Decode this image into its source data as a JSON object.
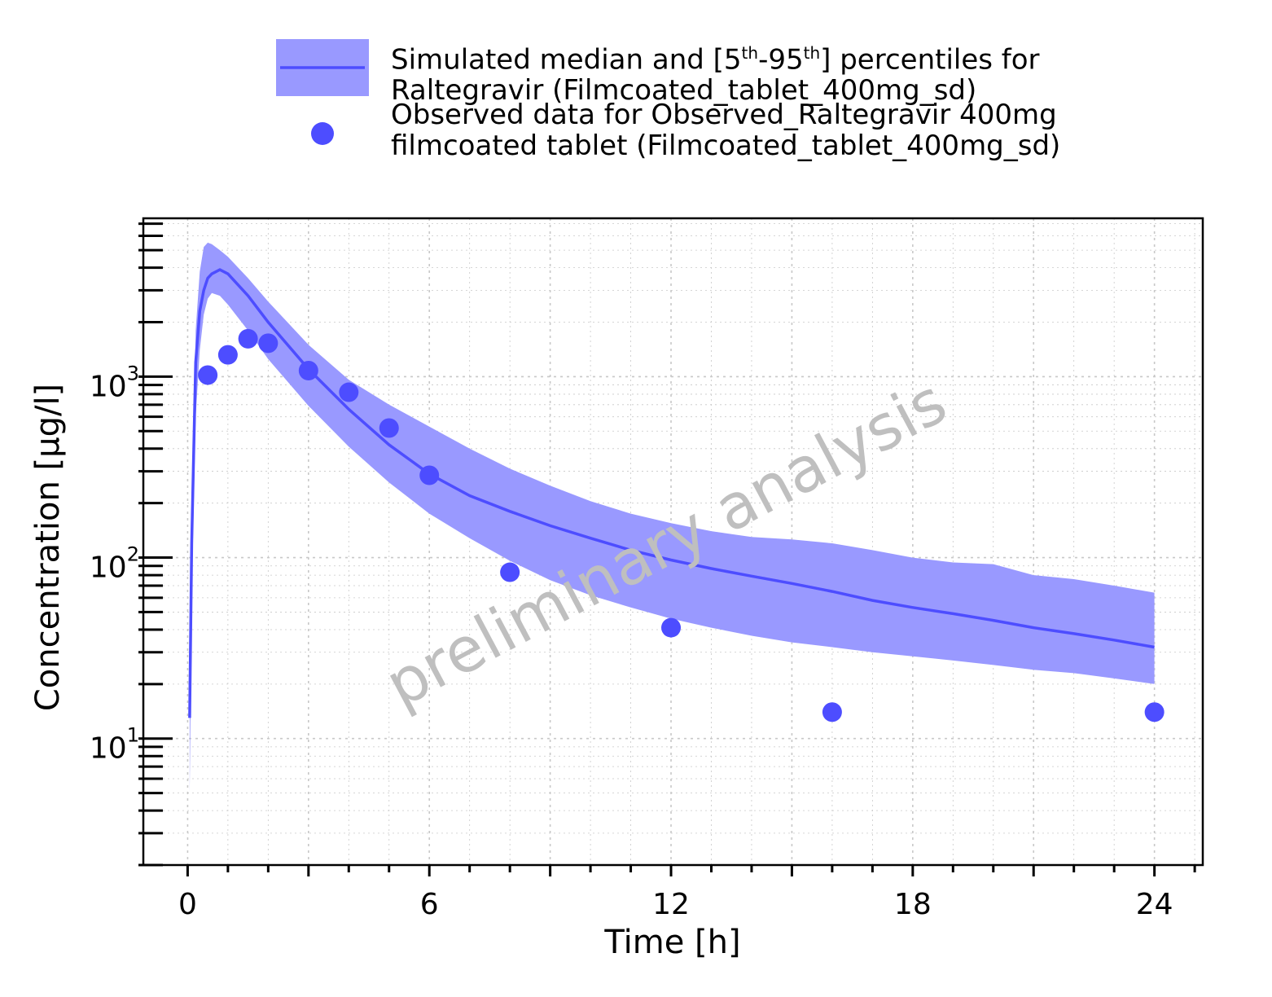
{
  "legend": {
    "band_label_pre": "Simulated median and [5",
    "band_sup1": "th",
    "band_mid": "-95",
    "band_sup2": "th",
    "band_label_post": "] percentiles for",
    "band_label_line2": "Raltegravir (Filmcoated_tablet_400mg_sd)",
    "obs_label_line1": "Observed data for Observed_Raltegravir 400mg",
    "obs_label_line2": "filmcoated tablet (Filmcoated_tablet_400mg_sd)"
  },
  "watermark": "preliminary analysis",
  "colors": {
    "band": "#9999ff",
    "median": "#4d4dff",
    "observed": "#4d4dff",
    "grid": "#c8c8c8",
    "watermark": "#bfbfbf"
  },
  "chart_data": {
    "type": "line",
    "xlabel": "Time [h]",
    "ylabel": "Concentration [µg/l]",
    "xlim": [
      -1.1,
      25.2
    ],
    "ylim": [
      2,
      7500
    ],
    "yscale": "log",
    "xticks": [
      0,
      6,
      12,
      18,
      24
    ],
    "xtick_labels": [
      "0",
      "6",
      "12",
      "18",
      "24"
    ],
    "yticks": [
      10,
      100,
      1000
    ],
    "ytick_labels": [
      {
        "base": "10",
        "exp": "1"
      },
      {
        "base": "10",
        "exp": "2"
      },
      {
        "base": "10",
        "exp": "3"
      }
    ],
    "grid": true,
    "legend_position": "top",
    "series": [
      {
        "kind": "band",
        "x": [
          0.05,
          0.1,
          0.2,
          0.3,
          0.4,
          0.5,
          0.6,
          0.8,
          1.0,
          1.5,
          2.0,
          3.0,
          4.0,
          5.0,
          6.0,
          7.0,
          8.0,
          9.0,
          10.0,
          11.0,
          12.0,
          13.0,
          14.0,
          15.0,
          16.0,
          17.0,
          18.0,
          19.0,
          20.0,
          21.0,
          22.0,
          23.0,
          24.0
        ],
        "lower": [
          5,
          60,
          600,
          1400,
          2200,
          2700,
          2900,
          2800,
          2500,
          1800,
          1250,
          690,
          410,
          260,
          175,
          128,
          96,
          75,
          62,
          53,
          46,
          41,
          37,
          34,
          32,
          30,
          28.5,
          27,
          25.5,
          24,
          23,
          21.5,
          20
        ],
        "upper": [
          12,
          150,
          1800,
          3800,
          5200,
          5500,
          5400,
          5000,
          4600,
          3500,
          2600,
          1500,
          960,
          700,
          530,
          400,
          310,
          250,
          205,
          175,
          155,
          140,
          130,
          126,
          120,
          110,
          100,
          94,
          92,
          80,
          76,
          70,
          64
        ]
      },
      {
        "kind": "line",
        "x": [
          0.05,
          0.1,
          0.2,
          0.3,
          0.4,
          0.5,
          0.6,
          0.8,
          1.0,
          1.5,
          2.0,
          3.0,
          4.0,
          5.0,
          6.0,
          7.0,
          8.0,
          9.0,
          10.0,
          11.0,
          12.0,
          13.0,
          14.0,
          15.0,
          16.0,
          17.0,
          18.0,
          19.0,
          20.0,
          21.0,
          22.0,
          23.0,
          24.0
        ],
        "y": [
          13,
          120,
          1200,
          2300,
          3000,
          3500,
          3700,
          3900,
          3700,
          2800,
          2000,
          1100,
          660,
          420,
          290,
          220,
          180,
          150,
          128,
          110,
          97,
          87,
          79,
          72,
          65,
          58,
          53,
          49,
          45,
          41,
          38,
          35,
          32
        ]
      },
      {
        "kind": "scatter",
        "x": [
          0.5,
          1.0,
          1.5,
          2.0,
          3.0,
          4.0,
          5.0,
          6.0,
          8.0,
          12.0,
          16.0,
          24.0
        ],
        "y": [
          1020,
          1320,
          1620,
          1530,
          1080,
          820,
          520,
          285,
          83,
          41,
          14,
          14
        ]
      }
    ]
  }
}
